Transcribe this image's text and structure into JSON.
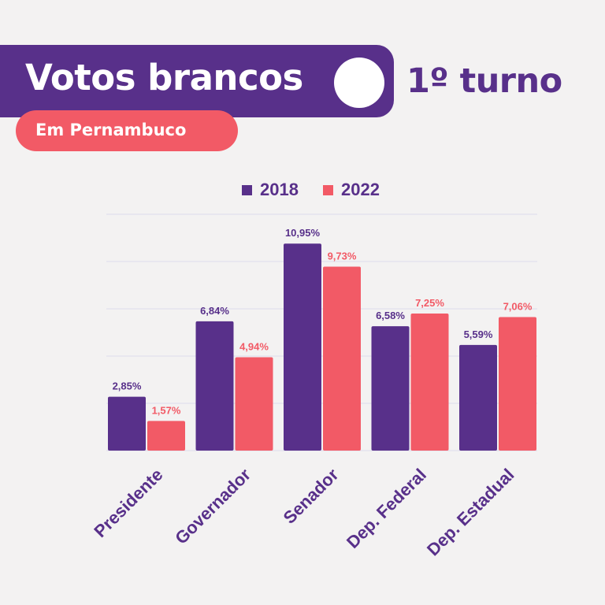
{
  "header": {
    "title": "Votos brancos",
    "round": "1º turno",
    "subtitle": "Em Pernambuco"
  },
  "colors": {
    "purple": "#58308a",
    "coral": "#f25a66",
    "grid": "#dcdcec"
  },
  "chart_data": {
    "type": "bar",
    "categories": [
      "Presidente",
      "Governador",
      "Senador",
      "Dep. Federal",
      "Dep. Estadual"
    ],
    "series": [
      {
        "name": "2018",
        "values": [
          2.85,
          6.84,
          10.95,
          6.58,
          5.59
        ],
        "labels": [
          "2,85%",
          "6,84%",
          "10,95%",
          "6,58%",
          "5,59%"
        ],
        "color": "#58308a"
      },
      {
        "name": "2022",
        "values": [
          1.57,
          4.94,
          9.73,
          7.25,
          7.06
        ],
        "labels": [
          "1,57%",
          "4,94%",
          "9,73%",
          "7,25%",
          "7,06%"
        ],
        "color": "#f25a66"
      }
    ],
    "ylim": [
      0,
      12.5
    ],
    "grid": true,
    "legend": "top-center",
    "xlabel": "",
    "ylabel": ""
  }
}
